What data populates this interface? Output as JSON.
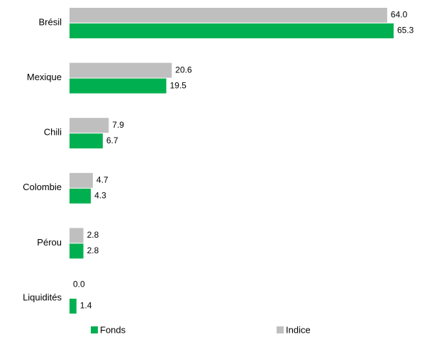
{
  "chart_data": {
    "type": "bar",
    "orientation": "horizontal",
    "categories": [
      "Brésil",
      "Mexique",
      "Chili",
      "Colombie",
      "Pérou",
      "Liquidités"
    ],
    "series": [
      {
        "name": "Fonds",
        "color": "#00b050",
        "values": [
          65.3,
          19.5,
          6.7,
          4.3,
          2.8,
          1.4
        ],
        "value_labels": [
          "65.3",
          "19.5",
          "6.7",
          "4.3",
          "2.8",
          "1.4"
        ]
      },
      {
        "name": "Indice",
        "color": "#bfbfbf",
        "values": [
          64,
          20.6,
          7.9,
          4.7,
          2.8,
          0
        ],
        "value_labels": [
          "64.0",
          "20.6",
          "7.9",
          "4.7",
          "2.8",
          "0.0"
        ]
      }
    ],
    "legend": "bottom"
  }
}
